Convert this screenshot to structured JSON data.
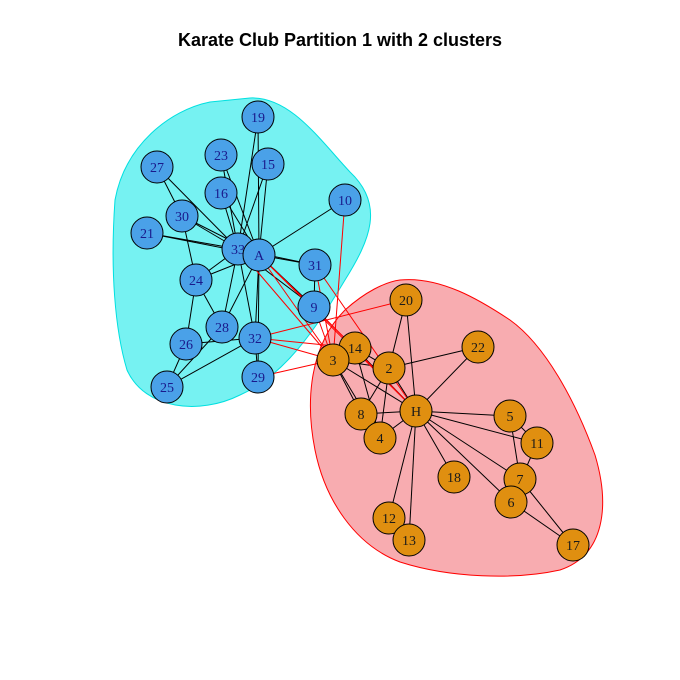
{
  "title": "Karate Club Partition 1 with 2 clusters",
  "colors": {
    "cluster1_fill": "#5ef0f0",
    "cluster1_border": "#00e0e0",
    "cluster2_fill": "#f7a3a7",
    "cluster2_border": "#ff0000",
    "node1_fill": "#4aa1e8",
    "node2_fill": "#e08f10",
    "node_border": "#000000",
    "edge_intra": "#000000",
    "edge_cross": "#ff0000"
  },
  "nodes": [
    {
      "id": "19",
      "cluster": 1
    },
    {
      "id": "27",
      "cluster": 1
    },
    {
      "id": "23",
      "cluster": 1
    },
    {
      "id": "15",
      "cluster": 1
    },
    {
      "id": "16",
      "cluster": 1
    },
    {
      "id": "10",
      "cluster": 1
    },
    {
      "id": "30",
      "cluster": 1
    },
    {
      "id": "21",
      "cluster": 1
    },
    {
      "id": "33",
      "cluster": 1
    },
    {
      "id": "A",
      "cluster": 1
    },
    {
      "id": "31",
      "cluster": 1
    },
    {
      "id": "24",
      "cluster": 1
    },
    {
      "id": "9",
      "cluster": 1
    },
    {
      "id": "28",
      "cluster": 1
    },
    {
      "id": "26",
      "cluster": 1
    },
    {
      "id": "32",
      "cluster": 1
    },
    {
      "id": "25",
      "cluster": 1
    },
    {
      "id": "29",
      "cluster": 1
    },
    {
      "id": "20",
      "cluster": 2
    },
    {
      "id": "22",
      "cluster": 2
    },
    {
      "id": "14",
      "cluster": 2
    },
    {
      "id": "3",
      "cluster": 2
    },
    {
      "id": "2",
      "cluster": 2
    },
    {
      "id": "H",
      "cluster": 2
    },
    {
      "id": "8",
      "cluster": 2
    },
    {
      "id": "4",
      "cluster": 2
    },
    {
      "id": "5",
      "cluster": 2
    },
    {
      "id": "11",
      "cluster": 2
    },
    {
      "id": "7",
      "cluster": 2
    },
    {
      "id": "18",
      "cluster": 2
    },
    {
      "id": "6",
      "cluster": 2
    },
    {
      "id": "12",
      "cluster": 2
    },
    {
      "id": "13",
      "cluster": 2
    },
    {
      "id": "17",
      "cluster": 2
    }
  ],
  "edges": [
    [
      "19",
      "33"
    ],
    [
      "19",
      "A"
    ],
    [
      "27",
      "30"
    ],
    [
      "27",
      "33"
    ],
    [
      "23",
      "33"
    ],
    [
      "23",
      "A"
    ],
    [
      "15",
      "33"
    ],
    [
      "15",
      "A"
    ],
    [
      "16",
      "33"
    ],
    [
      "16",
      "A"
    ],
    [
      "10",
      "A"
    ],
    [
      "21",
      "33"
    ],
    [
      "21",
      "A"
    ],
    [
      "30",
      "33"
    ],
    [
      "30",
      "A"
    ],
    [
      "30",
      "24"
    ],
    [
      "33",
      "A"
    ],
    [
      "33",
      "24"
    ],
    [
      "33",
      "28"
    ],
    [
      "33",
      "32"
    ],
    [
      "33",
      "31"
    ],
    [
      "33",
      "9"
    ],
    [
      "A",
      "31"
    ],
    [
      "A",
      "9"
    ],
    [
      "A",
      "32"
    ],
    [
      "A",
      "29"
    ],
    [
      "A",
      "28"
    ],
    [
      "A",
      "24"
    ],
    [
      "24",
      "26"
    ],
    [
      "24",
      "28"
    ],
    [
      "26",
      "25"
    ],
    [
      "26",
      "32"
    ],
    [
      "25",
      "32"
    ],
    [
      "28",
      "25"
    ],
    [
      "32",
      "29"
    ],
    [
      "31",
      "9"
    ],
    [
      "20",
      "2"
    ],
    [
      "20",
      "H"
    ],
    [
      "22",
      "2"
    ],
    [
      "22",
      "H"
    ],
    [
      "14",
      "3"
    ],
    [
      "14",
      "2"
    ],
    [
      "14",
      "H"
    ],
    [
      "14",
      "4"
    ],
    [
      "3",
      "2"
    ],
    [
      "3",
      "H"
    ],
    [
      "3",
      "8"
    ],
    [
      "3",
      "4"
    ],
    [
      "2",
      "H"
    ],
    [
      "2",
      "8"
    ],
    [
      "2",
      "4"
    ],
    [
      "H",
      "8"
    ],
    [
      "H",
      "4"
    ],
    [
      "H",
      "5"
    ],
    [
      "H",
      "11"
    ],
    [
      "H",
      "7"
    ],
    [
      "H",
      "6"
    ],
    [
      "H",
      "18"
    ],
    [
      "H",
      "12"
    ],
    [
      "H",
      "13"
    ],
    [
      "8",
      "4"
    ],
    [
      "5",
      "11"
    ],
    [
      "5",
      "7"
    ],
    [
      "7",
      "6"
    ],
    [
      "7",
      "17"
    ],
    [
      "6",
      "17"
    ],
    [
      "11",
      "6"
    ]
  ],
  "cross_edges": [
    [
      "10",
      "3"
    ],
    [
      "A",
      "3"
    ],
    [
      "A",
      "14"
    ],
    [
      "A",
      "H"
    ],
    [
      "31",
      "3"
    ],
    [
      "31",
      "H"
    ],
    [
      "9",
      "3"
    ],
    [
      "9",
      "H"
    ],
    [
      "32",
      "3"
    ],
    [
      "32",
      "14"
    ],
    [
      "29",
      "3"
    ],
    [
      "33",
      "3"
    ],
    [
      "20",
      "32"
    ]
  ]
}
